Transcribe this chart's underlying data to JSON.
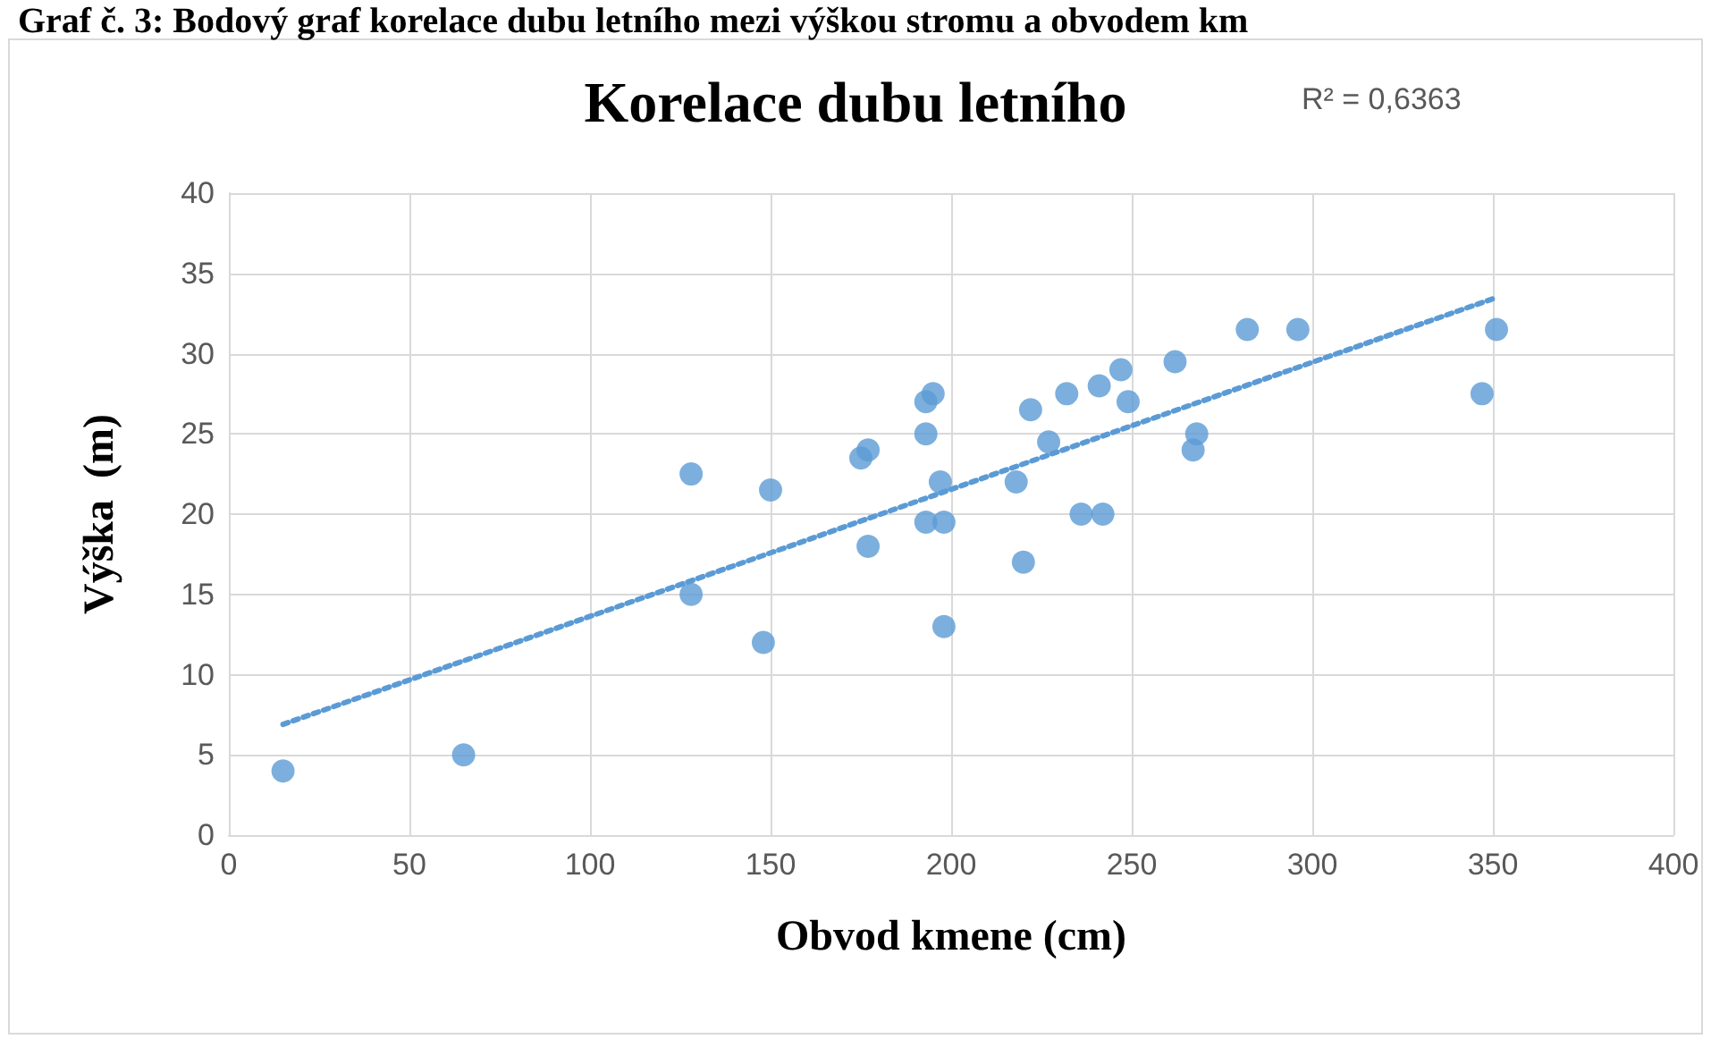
{
  "chart_data": {
    "type": "scatter",
    "title": "Korelace dubu letního",
    "xlabel": "Obvod kmene (cm)",
    "ylabel": "Výška  (m)",
    "annotations": [
      "Graf č. 3: Bodový graf korelace dubu letního mezi výškou stromu a obvodem km",
      "R² = 0,6363"
    ],
    "xlim": [
      0,
      400
    ],
    "xticks": [
      0,
      50,
      100,
      150,
      200,
      250,
      300,
      350,
      400
    ],
    "ylim": [
      0,
      40
    ],
    "yticks": [
      0,
      5,
      10,
      15,
      20,
      25,
      30,
      35,
      40
    ],
    "grid": true,
    "marker": "circle",
    "series": [
      {
        "color": "#5b9bd5",
        "x": [
          15,
          65,
          128,
          128,
          148,
          150,
          175,
          177,
          177,
          193,
          195,
          193,
          193,
          197,
          198,
          198,
          218,
          220,
          222,
          227,
          232,
          236,
          241,
          242,
          247,
          249,
          262,
          267,
          268,
          282,
          296,
          347,
          351
        ],
        "values": [
          4,
          5,
          22.5,
          15,
          12,
          21.5,
          23.5,
          24,
          18,
          27,
          27.5,
          25,
          19.5,
          22,
          19.5,
          13,
          22,
          17,
          26.5,
          24.5,
          27.5,
          20,
          28,
          20,
          29,
          27,
          29.5,
          24,
          25,
          31.5,
          31.5,
          27.5,
          31.5
        ]
      },
      {
        "type": "line",
        "color": "#5b9bd5",
        "line_style": "dotted",
        "marker": "none",
        "x": [
          15,
          351
        ],
        "values": [
          6.9,
          33.5
        ]
      }
    ]
  }
}
